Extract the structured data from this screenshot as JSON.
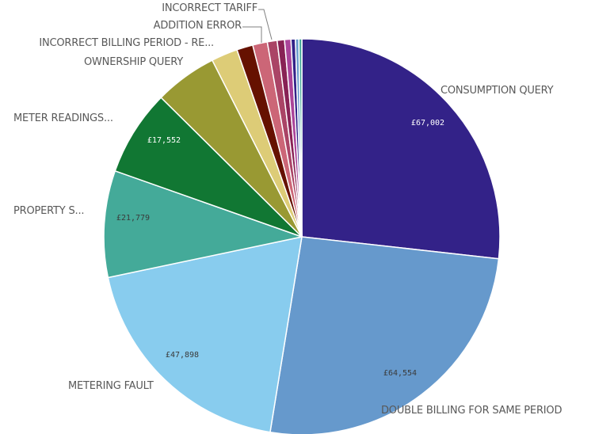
{
  "chart_data": {
    "type": "pie",
    "title": "",
    "currency_prefix": "£",
    "slices": [
      {
        "name": "CONSUMPTION QUERY",
        "value": 67002,
        "value_label": "£67,002",
        "color": "#332288",
        "label_color": "#ffffff"
      },
      {
        "name": "DOUBLE BILLING FOR SAME PERIOD",
        "value": 64554,
        "value_label": "£64,554",
        "color": "#6699cc",
        "label_color": "#3a3a3a"
      },
      {
        "name": "METERING FAULT",
        "value": 47898,
        "value_label": "£47,898",
        "color": "#88ccee",
        "label_color": "#3a3a3a"
      },
      {
        "name": "PROPERTY S...",
        "value": 21779,
        "value_label": "£21,779",
        "color": "#44aa99",
        "label_color": "#3a3a3a"
      },
      {
        "name": "METER READINGS...",
        "value": 17552,
        "value_label": "£17,552",
        "color": "#117733",
        "label_color": "#ffffff"
      },
      {
        "name": "OWNERSHIP QUERY",
        "value": 12800,
        "value_label": "",
        "color": "#999933",
        "label_color": "#3a3a3a"
      },
      {
        "name": "INCORRECT BILLING PERIOD - RE...",
        "value": 5400,
        "value_label": "",
        "color": "#ddcc77",
        "label_color": "#3a3a3a"
      },
      {
        "name": "",
        "value": 3300,
        "value_label": "",
        "color": "#661100",
        "label_color": "#3a3a3a"
      },
      {
        "name": "ADDITION ERROR",
        "value": 3000,
        "value_label": "",
        "color": "#cc6677",
        "label_color": "#3a3a3a"
      },
      {
        "name": "INCORRECT TARIFF",
        "value": 2000,
        "value_label": "",
        "color": "#aa4466",
        "label_color": "#3a3a3a"
      },
      {
        "name": "",
        "value": 1500,
        "value_label": "",
        "color": "#882255",
        "label_color": "#3a3a3a"
      },
      {
        "name": "",
        "value": 1300,
        "value_label": "",
        "color": "#aa4499",
        "label_color": "#3a3a3a"
      },
      {
        "name": "",
        "value": 900,
        "value_label": "",
        "color": "#332288",
        "label_color": "#3a3a3a"
      },
      {
        "name": "",
        "value": 700,
        "value_label": "",
        "color": "#6699cc",
        "label_color": "#3a3a3a"
      },
      {
        "name": "",
        "value": 600,
        "value_label": "",
        "color": "#44aa99",
        "label_color": "#3a3a3a"
      }
    ]
  }
}
